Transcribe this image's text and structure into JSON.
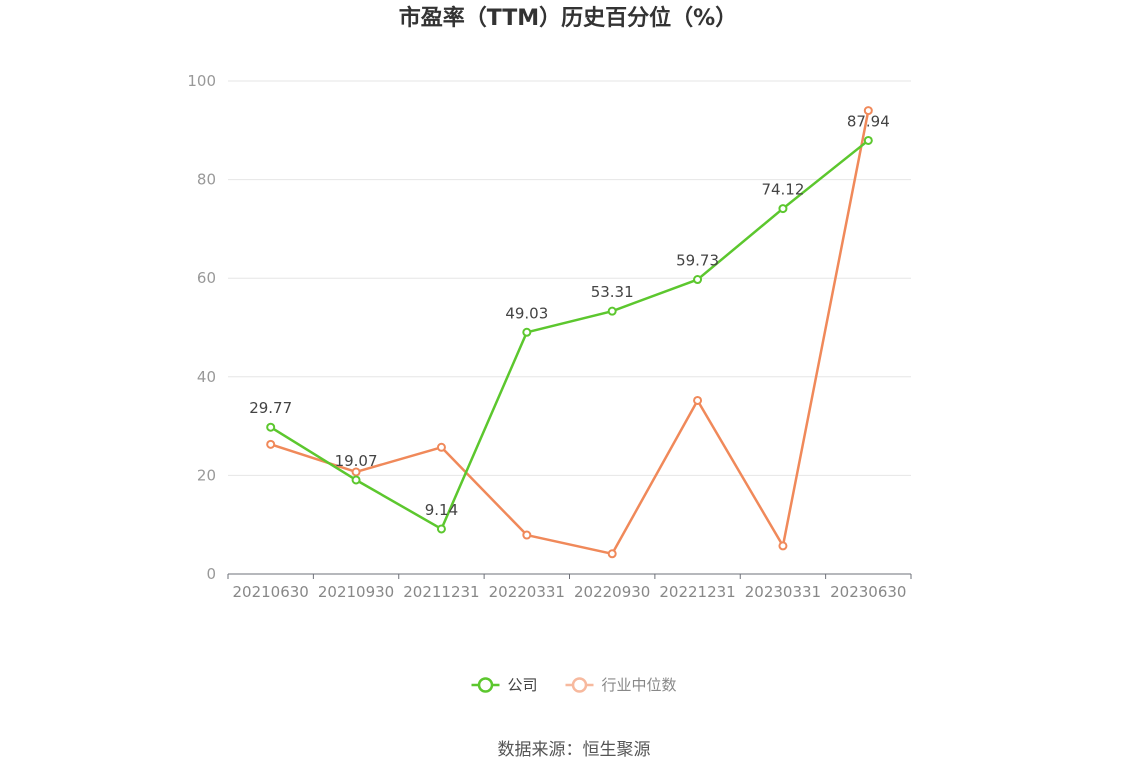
{
  "chart_data": {
    "type": "line",
    "title": "市盈率（TTM）历史百分位（%）",
    "categories": [
      "20210630",
      "20210930",
      "20211231",
      "20220331",
      "20220930",
      "20221231",
      "20230331",
      "20230630"
    ],
    "ylim": [
      0,
      100
    ],
    "yticks": [
      0,
      20,
      40,
      60,
      80,
      100
    ],
    "grid": true,
    "legend_position": "bottom",
    "series": [
      {
        "name": "公司",
        "color": "#5cc72e",
        "show_labels": true,
        "values": [
          29.77,
          19.07,
          9.14,
          49.03,
          53.31,
          59.73,
          74.12,
          87.94
        ],
        "labels": [
          "29.77",
          "19.07",
          "9.14",
          "49.03",
          "53.31",
          "59.73",
          "74.12",
          "87.94"
        ]
      },
      {
        "name": "行业中位数",
        "color": "#f0895a",
        "legend_color": "#f7b99e",
        "show_labels": false,
        "values": [
          26.3,
          20.7,
          25.7,
          7.9,
          4.1,
          35.2,
          5.7,
          94.0
        ]
      }
    ]
  },
  "source": "数据来源：恒生聚源"
}
